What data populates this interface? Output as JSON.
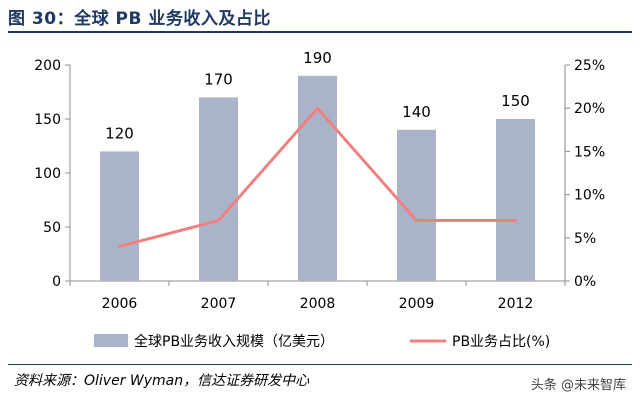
{
  "title": "图 30：全球 PB 业务收入及占比",
  "source": "资料来源：Oliver Wyman，信达证券研发中心",
  "watermark": "头条 @未来智库",
  "colors": {
    "bar": "#aab4c8",
    "line": "#f08080",
    "title": "#1f3864",
    "axis": "#8c8c8c"
  },
  "chart_data": {
    "type": "bar",
    "categories": [
      "2006",
      "2007",
      "2008",
      "2009",
      "2012"
    ],
    "series": [
      {
        "name": "全球PB业务收入规模（亿美元）",
        "type": "bar",
        "axis": "left",
        "values": [
          120,
          170,
          190,
          140,
          150
        ]
      },
      {
        "name": "PB业务占比(%)",
        "type": "line",
        "axis": "right",
        "values": [
          4,
          7,
          20,
          7,
          7
        ]
      }
    ],
    "y_left": {
      "min": 0,
      "max": 200,
      "ticks": [
        0,
        50,
        100,
        150,
        200
      ]
    },
    "y_right": {
      "min": 0,
      "max": 25,
      "ticks": [
        "0%",
        "5%",
        "10%",
        "15%",
        "20%",
        "25%"
      ]
    },
    "data_labels": [
      "120",
      "170",
      "190",
      "140",
      "150"
    ],
    "legend_position": "bottom",
    "grid": false
  }
}
